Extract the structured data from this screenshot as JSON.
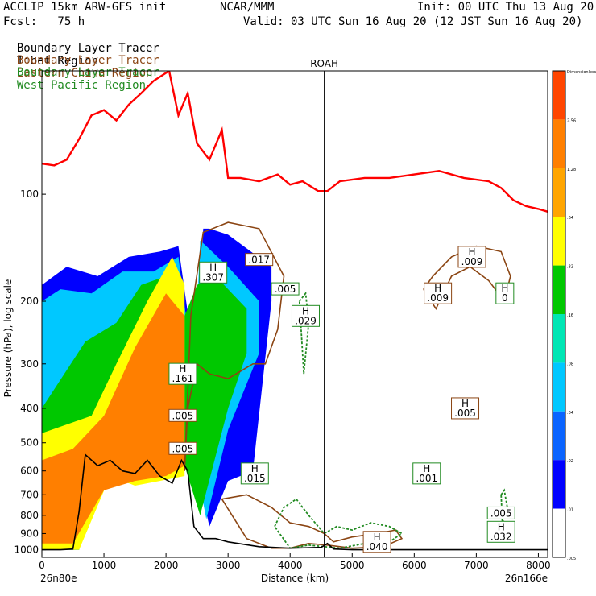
{
  "header": {
    "model": "ACCLIP 15km ARW-GFS init",
    "org": "NCAR/MMM",
    "init": "Init: 00 UTC Thu 13 Aug 20",
    "fcst": "Fcst:   75 h",
    "valid": "Valid: 03 UTC Sun 16 Aug 20 (12 JST Sun 16 Aug 20)"
  },
  "legend": [
    {
      "prefix": "Boundary Layer Tracer",
      "region": "Tibet Region",
      "color": "#000000"
    },
    {
      "prefix": "Boundary Layer Tracer",
      "region": "Eastern China Region",
      "color": "#8b4513"
    },
    {
      "prefix": "Boundary Layer Tracer",
      "region": "West Pacific Region",
      "color": "#228b22"
    }
  ],
  "colors": {
    "tropopause": "#ff0000",
    "terrain": "#000000",
    "eastern_china": "#8b4513",
    "west_pacific": "#228b22",
    "tibet_fill_levels": [
      "#0000ff",
      "#0a64ff",
      "#00c8ff",
      "#00e6b4",
      "#00c800",
      "#ffff00",
      "#ffa500",
      "#ff7f00",
      "#ff4500"
    ]
  },
  "chart_data": {
    "type": "cross-section",
    "xlabel": "Distance (km)",
    "ylabel": "Pressure (hPa), log scale",
    "xlim": [
      0,
      8150
    ],
    "ylim": [
      1050,
      45
    ],
    "xticks": [
      0,
      1000,
      2000,
      3000,
      4000,
      5000,
      6000,
      7000,
      8000
    ],
    "yticks": [
      100,
      200,
      300,
      400,
      500,
      600,
      700,
      800,
      900,
      1000
    ],
    "x_start_label": "26n80e",
    "x_end_label": "26n166e",
    "marker": {
      "label": "ROAH",
      "x": 4550
    },
    "colorbar": {
      "levels": [
        "Dimensionless",
        "2.56",
        "1.28",
        ".64",
        ".32",
        ".16",
        ".08",
        ".04",
        ".02",
        ".01",
        ".005"
      ],
      "colors": [
        "#ff4500",
        "#ff7f00",
        "#ffa500",
        "#ffff00",
        "#00c800",
        "#00e6b4",
        "#00c8ff",
        "#0a64ff",
        "#0000ff",
        "#ffffff"
      ]
    },
    "tropopause_line": {
      "x": [
        0,
        200,
        400,
        600,
        800,
        1000,
        1200,
        1400,
        1600,
        1800,
        2050,
        2200,
        2350,
        2500,
        2700,
        2900,
        3000,
        3200,
        3500,
        3800,
        4000,
        4200,
        4450,
        4600,
        4800,
        5200,
        5600,
        6000,
        6400,
        6800,
        7200,
        7400,
        7600,
        7800,
        8000,
        8150
      ],
      "y": [
        82,
        83,
        80,
        70,
        60,
        58,
        62,
        56,
        52,
        48,
        45,
        60,
        52,
        72,
        80,
        66,
        90,
        90,
        92,
        88,
        94,
        92,
        98,
        98,
        92,
        90,
        90,
        88,
        86,
        90,
        92,
        96,
        104,
        108,
        110,
        112
      ]
    },
    "terrain_line": {
      "x": [
        0,
        300,
        500,
        600,
        700,
        900,
        1100,
        1300,
        1500,
        1700,
        1900,
        2100,
        2250,
        2350,
        2450,
        2600,
        2800,
        3000,
        3500,
        4000,
        4500,
        4600,
        4700,
        5000,
        6000,
        7000,
        8150
      ],
      "y": [
        1000,
        1000,
        995,
        780,
        540,
        580,
        560,
        600,
        610,
        560,
        620,
        650,
        560,
        600,
        860,
        930,
        930,
        950,
        980,
        990,
        985,
        960,
        995,
        1000,
        1000,
        1000,
        1000
      ]
    },
    "tibet_tracer_regions": [
      {
        "level": ".005",
        "x": [
          0,
          600,
          900,
          1400,
          1800,
          2150,
          2300,
          2500,
          2700,
          3000,
          3400,
          3700,
          3700,
          3000,
          2700,
          2600,
          2500,
          2200,
          1900,
          1400,
          900,
          400,
          0
        ],
        "y": [
          1000,
          1000,
          560,
          640,
          610,
          620,
          560,
          600,
          860,
          640,
          600,
          200,
          160,
          130,
          125,
          125,
          330,
          140,
          145,
          150,
          170,
          160,
          180
        ]
      },
      {
        "level": ".04",
        "x": [
          0,
          600,
          1000,
          1400,
          1900,
          2250,
          2350,
          2500,
          2650,
          3000,
          3500,
          3500,
          3000,
          2650,
          2550,
          2450,
          2200,
          1800,
          1300,
          800,
          300,
          0
        ],
        "y": [
          1000,
          1000,
          560,
          620,
          600,
          560,
          560,
          600,
          820,
          460,
          280,
          200,
          160,
          140,
          135,
          330,
          150,
          165,
          165,
          190,
          185,
          200
        ]
      },
      {
        "level": ".16",
        "x": [
          0,
          600,
          1000,
          1400,
          1900,
          2300,
          2550,
          3000,
          3300,
          3300,
          2800,
          2500,
          2300,
          2000,
          1600,
          1200,
          700,
          0
        ],
        "y": [
          1000,
          1000,
          600,
          650,
          620,
          580,
          800,
          400,
          280,
          210,
          170,
          180,
          220,
          170,
          180,
          230,
          260,
          400
        ]
      },
      {
        "level": ".32",
        "x": [
          0,
          600,
          1100,
          1500,
          1900,
          2300,
          2300,
          2100,
          1700,
          1200,
          800,
          0
        ],
        "y": [
          1000,
          1000,
          620,
          660,
          640,
          620,
          180,
          150,
          200,
          300,
          420,
          470
        ]
      },
      {
        "level": ".64",
        "x": [
          0,
          500,
          1000,
          1500,
          2000,
          2300,
          2300,
          2000,
          1500,
          1000,
          500,
          0
        ],
        "y": [
          960,
          960,
          680,
          640,
          620,
          580,
          220,
          190,
          270,
          420,
          520,
          560
        ]
      }
    ],
    "eastern_china_contours": [
      {
        "x": [
          2300,
          2400,
          2600,
          3000,
          3500,
          3900,
          3800,
          3600,
          3400,
          3000,
          2700,
          2500,
          2350,
          2300
        ],
        "y": [
          600,
          220,
          128,
          120,
          125,
          170,
          240,
          300,
          300,
          330,
          320,
          300,
          400,
          600
        ]
      },
      {
        "x": [
          6150,
          6300,
          6600,
          7000,
          7400,
          7550,
          7450,
          7200,
          6900,
          6600,
          6350,
          6150
        ],
        "y": [
          185,
          170,
          150,
          140,
          145,
          170,
          200,
          175,
          160,
          170,
          210,
          185
        ]
      },
      {
        "x": [
          2900,
          3300,
          3700,
          4000,
          4300,
          4550,
          4700,
          5000,
          5400,
          5700,
          5800,
          5500,
          5000,
          4600,
          4300,
          4000,
          3700,
          3300,
          2900
        ],
        "y": [
          720,
          700,
          760,
          840,
          860,
          900,
          950,
          920,
          900,
          880,
          930,
          980,
          990,
          970,
          960,
          990,
          990,
          930,
          720
        ]
      }
    ],
    "west_pacific_contours": [
      {
        "x": [
          3750,
          3900,
          4100,
          4300,
          4550,
          4750,
          5000,
          5300,
          5600,
          5800,
          5600,
          5200,
          4800,
          4550,
          4300,
          4000,
          3750
        ],
        "y": [
          860,
          760,
          720,
          800,
          900,
          860,
          880,
          840,
          860,
          900,
          950,
          960,
          990,
          980,
          970,
          990,
          860
        ]
      },
      {
        "x": [
          4150,
          4250,
          4300,
          4220,
          4150
        ],
        "y": [
          200,
          190,
          230,
          320,
          200
        ]
      },
      {
        "x": [
          7400,
          7450,
          7500,
          7420,
          7400
        ],
        "y": [
          700,
          680,
          760,
          840,
          700
        ]
      }
    ],
    "annotations": [
      {
        "type": "label",
        "text": ".017",
        "x": 3500,
        "y": 153,
        "color": "#8b4513"
      },
      {
        "type": "high",
        "text": ".307",
        "x": 2760,
        "y": 166,
        "color": "#228b22"
      },
      {
        "type": "label",
        "text": ".005",
        "x": 3920,
        "y": 185,
        "color": "#228b22"
      },
      {
        "type": "high",
        "text": ".029",
        "x": 4250,
        "y": 220,
        "color": "#228b22"
      },
      {
        "type": "high",
        "text": ".009",
        "x": 6380,
        "y": 190,
        "color": "#8b4513"
      },
      {
        "type": "high",
        "text": ".009",
        "x": 6930,
        "y": 150,
        "color": "#8b4513"
      },
      {
        "type": "high",
        "text": "0",
        "x": 7460,
        "y": 190,
        "color": "#228b22"
      },
      {
        "type": "high",
        "text": ".161",
        "x": 2270,
        "y": 320,
        "color": "#228b22"
      },
      {
        "type": "label",
        "text": ".005",
        "x": 2270,
        "y": 420,
        "color": "#8b4513"
      },
      {
        "type": "label",
        "text": ".005",
        "x": 2270,
        "y": 520,
        "color": "#8b4513"
      },
      {
        "type": "high",
        "text": ".005",
        "x": 6820,
        "y": 400,
        "color": "#8b4513"
      },
      {
        "type": "high",
        "text": ".015",
        "x": 3430,
        "y": 610,
        "color": "#228b22"
      },
      {
        "type": "high",
        "text": ".001",
        "x": 6200,
        "y": 610,
        "color": "#228b22"
      },
      {
        "type": "label",
        "text": ".005",
        "x": 7400,
        "y": 790,
        "color": "#228b22"
      },
      {
        "type": "high",
        "text": ".032",
        "x": 7400,
        "y": 890,
        "color": "#228b22"
      },
      {
        "type": "high",
        "text": ".040",
        "x": 5400,
        "y": 950,
        "color": "#8b4513"
      }
    ]
  }
}
